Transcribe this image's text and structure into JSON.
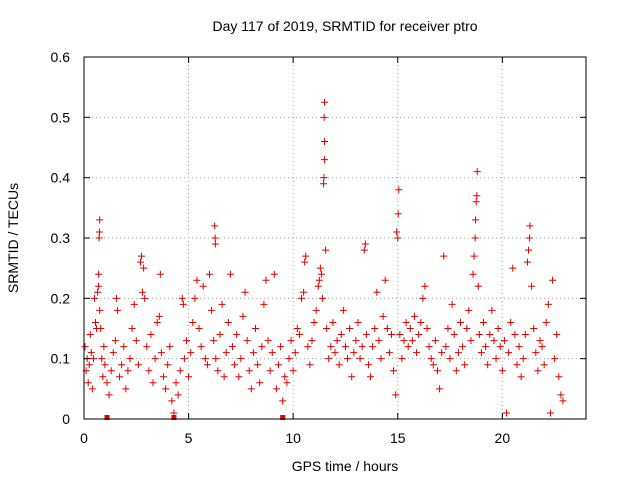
{
  "chart_data": {
    "type": "scatter",
    "title": "Day 117 of 2019, SRMTID for receiver ptro",
    "xlabel": "GPS time / hours",
    "ylabel": "SRMTID / TECUs",
    "xlim": [
      0,
      24
    ],
    "ylim": [
      0,
      0.6
    ],
    "xticks": [
      0,
      5,
      10,
      15,
      20
    ],
    "xtick_labels": [
      "0",
      "5",
      "10",
      "15",
      "20"
    ],
    "yticks": [
      0,
      0.1,
      0.2,
      0.3,
      0.4,
      0.5,
      0.6
    ],
    "ytick_labels": [
      "0",
      "0.1",
      "0.2",
      "0.3",
      "0.4",
      "0.5",
      "0.6"
    ],
    "grid": true,
    "marker": "plus",
    "color": "#e00000",
    "series": [
      {
        "name": "SRMTID",
        "points": [
          [
            0.05,
            0.12
          ],
          [
            0.1,
            0.08
          ],
          [
            0.15,
            0.1
          ],
          [
            0.2,
            0.06
          ],
          [
            0.25,
            0.09
          ],
          [
            0.3,
            0.14
          ],
          [
            0.35,
            0.11
          ],
          [
            0.4,
            0.05
          ],
          [
            0.45,
            0.1
          ],
          [
            0.5,
            0.2
          ],
          [
            0.55,
            0.16
          ],
          [
            0.6,
            0.15
          ],
          [
            0.65,
            0.21
          ],
          [
            0.7,
            0.22
          ],
          [
            0.75,
            0.18
          ],
          [
            0.7,
            0.24
          ],
          [
            0.75,
            0.33
          ],
          [
            0.72,
            0.3
          ],
          [
            0.74,
            0.31
          ],
          [
            0.8,
            0.15
          ],
          [
            0.85,
            0.1
          ],
          [
            0.9,
            0.07
          ],
          [
            0.95,
            0.12
          ],
          [
            1.0,
            0.09
          ],
          [
            1.1,
            0.06
          ],
          [
            1.2,
            0.04
          ],
          [
            1.3,
            0.08
          ],
          [
            1.4,
            0.11
          ],
          [
            1.5,
            0.13
          ],
          [
            1.55,
            0.2
          ],
          [
            1.6,
            0.18
          ],
          [
            1.7,
            0.07
          ],
          [
            1.8,
            0.09
          ],
          [
            1.9,
            0.12
          ],
          [
            2.0,
            0.05
          ],
          [
            2.1,
            0.08
          ],
          [
            2.2,
            0.1
          ],
          [
            2.3,
            0.15
          ],
          [
            2.4,
            0.19
          ],
          [
            2.5,
            0.13
          ],
          [
            2.6,
            0.09
          ],
          [
            2.7,
            0.26
          ],
          [
            2.75,
            0.27
          ],
          [
            2.8,
            0.21
          ],
          [
            2.85,
            0.25
          ],
          [
            2.9,
            0.2
          ],
          [
            3.0,
            0.12
          ],
          [
            3.1,
            0.08
          ],
          [
            3.2,
            0.14
          ],
          [
            3.3,
            0.06
          ],
          [
            3.4,
            0.1
          ],
          [
            3.5,
            0.16
          ],
          [
            3.6,
            0.17
          ],
          [
            3.65,
            0.24
          ],
          [
            3.7,
            0.11
          ],
          [
            3.8,
            0.07
          ],
          [
            3.9,
            0.05
          ],
          [
            4.0,
            0.09
          ],
          [
            4.1,
            0.12
          ],
          [
            4.2,
            0.03
          ],
          [
            4.3,
            0.01
          ],
          [
            4.4,
            0.06
          ],
          [
            4.5,
            0.04
          ],
          [
            4.6,
            0.08
          ],
          [
            4.7,
            0.2
          ],
          [
            4.75,
            0.19
          ],
          [
            4.8,
            0.1
          ],
          [
            4.9,
            0.13
          ],
          [
            5.0,
            0.07
          ],
          [
            5.1,
            0.11
          ],
          [
            5.2,
            0.16
          ],
          [
            5.3,
            0.2
          ],
          [
            5.4,
            0.23
          ],
          [
            5.5,
            0.15
          ],
          [
            5.6,
            0.12
          ],
          [
            5.7,
            0.22
          ],
          [
            5.8,
            0.1
          ],
          [
            5.9,
            0.09
          ],
          [
            6.0,
            0.24
          ],
          [
            6.1,
            0.18
          ],
          [
            6.2,
            0.13
          ],
          [
            6.25,
            0.32
          ],
          [
            6.27,
            0.3
          ],
          [
            6.28,
            0.29
          ],
          [
            6.3,
            0.1
          ],
          [
            6.4,
            0.08
          ],
          [
            6.5,
            0.14
          ],
          [
            6.6,
            0.19
          ],
          [
            6.7,
            0.07
          ],
          [
            6.8,
            0.11
          ],
          [
            6.9,
            0.16
          ],
          [
            7.0,
            0.24
          ],
          [
            7.1,
            0.12
          ],
          [
            7.2,
            0.09
          ],
          [
            7.3,
            0.14
          ],
          [
            7.4,
            0.07
          ],
          [
            7.5,
            0.1
          ],
          [
            7.6,
            0.17
          ],
          [
            7.7,
            0.21
          ],
          [
            7.8,
            0.13
          ],
          [
            7.9,
            0.08
          ],
          [
            8.0,
            0.05
          ],
          [
            8.1,
            0.11
          ],
          [
            8.2,
            0.15
          ],
          [
            8.3,
            0.09
          ],
          [
            8.4,
            0.06
          ],
          [
            8.5,
            0.12
          ],
          [
            8.6,
            0.19
          ],
          [
            8.7,
            0.23
          ],
          [
            8.8,
            0.13
          ],
          [
            8.9,
            0.08
          ],
          [
            9.0,
            0.11
          ],
          [
            9.1,
            0.24
          ],
          [
            9.2,
            0.05
          ],
          [
            9.3,
            0.09
          ],
          [
            9.4,
            0.12
          ],
          [
            9.5,
            0.03
          ],
          [
            9.6,
            0.07
          ],
          [
            9.7,
            0.06
          ],
          [
            9.8,
            0.1
          ],
          [
            9.9,
            0.13
          ],
          [
            10.0,
            0.08
          ],
          [
            10.1,
            0.11
          ],
          [
            10.2,
            0.15
          ],
          [
            10.3,
            0.14
          ],
          [
            10.4,
            0.2
          ],
          [
            10.5,
            0.21
          ],
          [
            10.55,
            0.26
          ],
          [
            10.6,
            0.27
          ],
          [
            10.7,
            0.12
          ],
          [
            10.8,
            0.09
          ],
          [
            10.9,
            0.13
          ],
          [
            11.0,
            0.16
          ],
          [
            11.1,
            0.18
          ],
          [
            11.2,
            0.22
          ],
          [
            11.25,
            0.23
          ],
          [
            11.3,
            0.25
          ],
          [
            11.35,
            0.24
          ],
          [
            11.4,
            0.2
          ],
          [
            11.45,
            0.39
          ],
          [
            11.47,
            0.4
          ],
          [
            11.5,
            0.43
          ],
          [
            11.5,
            0.46
          ],
          [
            11.48,
            0.5
          ],
          [
            11.5,
            0.525
          ],
          [
            11.55,
            0.28
          ],
          [
            11.6,
            0.15
          ],
          [
            11.7,
            0.1
          ],
          [
            11.8,
            0.12
          ],
          [
            11.9,
            0.16
          ],
          [
            12.0,
            0.11
          ],
          [
            12.1,
            0.13
          ],
          [
            12.2,
            0.09
          ],
          [
            12.3,
            0.14
          ],
          [
            12.4,
            0.18
          ],
          [
            12.5,
            0.12
          ],
          [
            12.6,
            0.1
          ],
          [
            12.7,
            0.15
          ],
          [
            12.8,
            0.07
          ],
          [
            12.9,
            0.11
          ],
          [
            13.0,
            0.13
          ],
          [
            13.1,
            0.16
          ],
          [
            13.2,
            0.1
          ],
          [
            13.3,
            0.12
          ],
          [
            13.4,
            0.28
          ],
          [
            13.45,
            0.29
          ],
          [
            13.5,
            0.14
          ],
          [
            13.6,
            0.09
          ],
          [
            13.7,
            0.07
          ],
          [
            13.8,
            0.12
          ],
          [
            13.9,
            0.15
          ],
          [
            14.0,
            0.21
          ],
          [
            14.1,
            0.13
          ],
          [
            14.2,
            0.1
          ],
          [
            14.3,
            0.17
          ],
          [
            14.4,
            0.23
          ],
          [
            14.5,
            0.15
          ],
          [
            14.6,
            0.11
          ],
          [
            14.7,
            0.14
          ],
          [
            14.8,
            0.08
          ],
          [
            14.9,
            0.04
          ],
          [
            14.95,
            0.31
          ],
          [
            15.0,
            0.3
          ],
          [
            15.02,
            0.34
          ],
          [
            15.05,
            0.38
          ],
          [
            15.1,
            0.14
          ],
          [
            15.2,
            0.1
          ],
          [
            15.3,
            0.13
          ],
          [
            15.4,
            0.16
          ],
          [
            15.5,
            0.12
          ],
          [
            15.6,
            0.15
          ],
          [
            15.7,
            0.13
          ],
          [
            15.8,
            0.17
          ],
          [
            15.9,
            0.11
          ],
          [
            16.0,
            0.14
          ],
          [
            16.1,
            0.16
          ],
          [
            16.2,
            0.2
          ],
          [
            16.3,
            0.22
          ],
          [
            16.4,
            0.15
          ],
          [
            16.5,
            0.12
          ],
          [
            16.6,
            0.1
          ],
          [
            16.7,
            0.09
          ],
          [
            16.8,
            0.13
          ],
          [
            16.9,
            0.08
          ],
          [
            17.0,
            0.05
          ],
          [
            17.1,
            0.11
          ],
          [
            17.2,
            0.27
          ],
          [
            17.3,
            0.12
          ],
          [
            17.4,
            0.15
          ],
          [
            17.5,
            0.1
          ],
          [
            17.6,
            0.19
          ],
          [
            17.7,
            0.14
          ],
          [
            17.8,
            0.08
          ],
          [
            17.9,
            0.11
          ],
          [
            18.0,
            0.16
          ],
          [
            18.1,
            0.12
          ],
          [
            18.2,
            0.09
          ],
          [
            18.3,
            0.15
          ],
          [
            18.4,
            0.18
          ],
          [
            18.5,
            0.13
          ],
          [
            18.6,
            0.24
          ],
          [
            18.65,
            0.27
          ],
          [
            18.7,
            0.3
          ],
          [
            18.72,
            0.33
          ],
          [
            18.75,
            0.36
          ],
          [
            18.78,
            0.37
          ],
          [
            18.8,
            0.41
          ],
          [
            18.85,
            0.22
          ],
          [
            18.9,
            0.14
          ],
          [
            19.0,
            0.11
          ],
          [
            19.1,
            0.16
          ],
          [
            19.2,
            0.12
          ],
          [
            19.3,
            0.09
          ],
          [
            19.4,
            0.14
          ],
          [
            19.5,
            0.18
          ],
          [
            19.6,
            0.13
          ],
          [
            19.7,
            0.1
          ],
          [
            19.8,
            0.15
          ],
          [
            19.9,
            0.12
          ],
          [
            20.0,
            0.08
          ],
          [
            20.1,
            0.13
          ],
          [
            20.2,
            0.01
          ],
          [
            20.3,
            0.11
          ],
          [
            20.4,
            0.16
          ],
          [
            20.5,
            0.25
          ],
          [
            20.6,
            0.14
          ],
          [
            20.7,
            0.09
          ],
          [
            20.8,
            0.12
          ],
          [
            20.9,
            0.07
          ],
          [
            21.0,
            0.1
          ],
          [
            21.1,
            0.14
          ],
          [
            21.2,
            0.26
          ],
          [
            21.25,
            0.28
          ],
          [
            21.3,
            0.3
          ],
          [
            21.32,
            0.32
          ],
          [
            21.4,
            0.22
          ],
          [
            21.5,
            0.15
          ],
          [
            21.6,
            0.11
          ],
          [
            21.7,
            0.08
          ],
          [
            21.8,
            0.13
          ],
          [
            21.9,
            0.12
          ],
          [
            22.0,
            0.09
          ],
          [
            22.1,
            0.16
          ],
          [
            22.2,
            0.19
          ],
          [
            22.3,
            0.01
          ],
          [
            22.4,
            0.23
          ],
          [
            22.5,
            0.1
          ],
          [
            22.6,
            0.14
          ],
          [
            22.7,
            0.07
          ],
          [
            22.8,
            0.04
          ],
          [
            22.9,
            0.03
          ]
        ]
      }
    ],
    "gaps": [
      1.1,
      4.3,
      9.5
    ]
  }
}
